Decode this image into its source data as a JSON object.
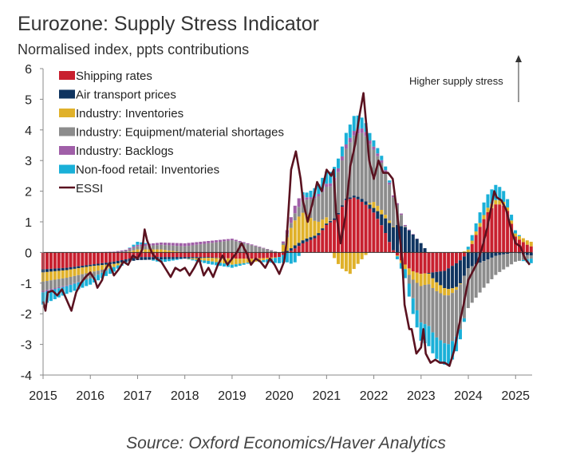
{
  "chart_data": {
    "type": "bar",
    "stacked": true,
    "title": "Eurozone: Supply Stress Indicator",
    "subtitle": "Normalised index, ppts contributions",
    "source": "Source: Oxford Economics/Haver Analytics",
    "annotation": "Higher supply stress",
    "ylim": [
      -4,
      6
    ],
    "yticks": [
      6,
      5,
      4,
      3,
      2,
      1,
      0,
      -1,
      -2,
      -3,
      -4
    ],
    "xticks": [
      "2015",
      "2016",
      "2017",
      "2018",
      "2019",
      "2020",
      "2021",
      "2022",
      "2023",
      "2024",
      "2025"
    ],
    "x_start": 2015.0,
    "x_end": 2025.35,
    "bar_step": 0.0833,
    "legend_position": "top-left",
    "colors": {
      "shipping": "#c8202f",
      "air": "#0f3460",
      "inventories": "#e0b12a",
      "shortages": "#8c8c8c",
      "backlogs": "#a05fa8",
      "retail": "#1ab0d8",
      "essi": "#5a1220"
    },
    "series": [
      {
        "key": "shipping",
        "name": "Shipping rates",
        "anchors": [
          [
            2015.0,
            -0.55
          ],
          [
            2015.5,
            -0.5
          ],
          [
            2016.0,
            -0.4
          ],
          [
            2016.5,
            -0.3
          ],
          [
            2017.0,
            -0.15
          ],
          [
            2017.5,
            -0.15
          ],
          [
            2018.0,
            -0.15
          ],
          [
            2018.5,
            -0.15
          ],
          [
            2019.0,
            -0.2
          ],
          [
            2019.5,
            -0.2
          ],
          [
            2020.0,
            -0.15
          ],
          [
            2020.3,
            0.1
          ],
          [
            2020.5,
            0.3
          ],
          [
            2020.8,
            0.5
          ],
          [
            2021.0,
            0.9
          ],
          [
            2021.2,
            1.1
          ],
          [
            2021.4,
            1.7
          ],
          [
            2021.6,
            1.8
          ],
          [
            2021.8,
            1.6
          ],
          [
            2022.0,
            1.3
          ],
          [
            2022.2,
            0.8
          ],
          [
            2022.4,
            0.1
          ],
          [
            2022.6,
            -0.3
          ],
          [
            2022.8,
            -0.6
          ],
          [
            2023.0,
            -0.7
          ],
          [
            2023.5,
            -0.6
          ],
          [
            2023.8,
            -0.3
          ],
          [
            2024.0,
            0.0
          ],
          [
            2024.2,
            0.7
          ],
          [
            2024.4,
            1.3
          ],
          [
            2024.6,
            1.6
          ],
          [
            2024.8,
            1.5
          ],
          [
            2025.0,
            0.5
          ],
          [
            2025.3,
            0.2
          ]
        ]
      },
      {
        "key": "air",
        "name": "Air transport prices",
        "anchors": [
          [
            2015.0,
            -0.1
          ],
          [
            2016.0,
            -0.05
          ],
          [
            2017.0,
            -0.1
          ],
          [
            2018.0,
            -0.05
          ],
          [
            2019.0,
            0.0
          ],
          [
            2020.0,
            0.0
          ],
          [
            2020.3,
            0.1
          ],
          [
            2020.6,
            0.1
          ],
          [
            2021.0,
            0.05
          ],
          [
            2021.5,
            0.05
          ],
          [
            2022.0,
            0.15
          ],
          [
            2022.2,
            0.4
          ],
          [
            2022.5,
            0.9
          ],
          [
            2022.7,
            0.8
          ],
          [
            2023.0,
            0.3
          ],
          [
            2023.3,
            -0.3
          ],
          [
            2023.6,
            -0.7
          ],
          [
            2023.8,
            -0.8
          ],
          [
            2024.0,
            -0.5
          ],
          [
            2024.3,
            -0.3
          ],
          [
            2024.6,
            -0.1
          ],
          [
            2025.0,
            0.0
          ],
          [
            2025.3,
            -0.1
          ]
        ]
      },
      {
        "key": "inventories",
        "name": "Industry: Inventories",
        "anchors": [
          [
            2015.0,
            -0.3
          ],
          [
            2015.5,
            -0.25
          ],
          [
            2016.0,
            -0.2
          ],
          [
            2016.5,
            -0.1
          ],
          [
            2017.0,
            0.1
          ],
          [
            2017.5,
            0.1
          ],
          [
            2018.0,
            0.0
          ],
          [
            2018.5,
            -0.1
          ],
          [
            2019.0,
            -0.2
          ],
          [
            2019.5,
            -0.1
          ],
          [
            2020.0,
            0.0
          ],
          [
            2020.3,
            0.8
          ],
          [
            2020.5,
            0.9
          ],
          [
            2020.8,
            0.4
          ],
          [
            2021.0,
            0.2
          ],
          [
            2021.3,
            -0.5
          ],
          [
            2021.5,
            -0.7
          ],
          [
            2021.7,
            -0.3
          ],
          [
            2022.0,
            0.2
          ],
          [
            2022.3,
            0.1
          ],
          [
            2022.6,
            -0.1
          ],
          [
            2023.0,
            -0.4
          ],
          [
            2023.3,
            -0.3
          ],
          [
            2023.6,
            -0.2
          ],
          [
            2024.0,
            0.1
          ],
          [
            2024.5,
            0.15
          ],
          [
            2025.0,
            0.1
          ],
          [
            2025.3,
            0.15
          ]
        ]
      },
      {
        "key": "shortages",
        "name": "Industry: Equipment/material shortages",
        "anchors": [
          [
            2015.0,
            -0.3
          ],
          [
            2015.5,
            -0.25
          ],
          [
            2016.0,
            -0.2
          ],
          [
            2016.5,
            0.0
          ],
          [
            2017.0,
            0.1
          ],
          [
            2017.5,
            0.15
          ],
          [
            2018.0,
            0.2
          ],
          [
            2018.5,
            0.3
          ],
          [
            2019.0,
            0.4
          ],
          [
            2019.5,
            0.2
          ],
          [
            2020.0,
            0.0
          ],
          [
            2020.3,
            0.2
          ],
          [
            2020.5,
            0.4
          ],
          [
            2020.8,
            0.8
          ],
          [
            2021.0,
            1.0
          ],
          [
            2021.3,
            1.4
          ],
          [
            2021.6,
            2.0
          ],
          [
            2021.8,
            2.2
          ],
          [
            2022.0,
            1.7
          ],
          [
            2022.2,
            1.5
          ],
          [
            2022.4,
            1.0
          ],
          [
            2022.6,
            0.3
          ],
          [
            2022.8,
            -0.5
          ],
          [
            2023.0,
            -1.2
          ],
          [
            2023.3,
            -1.5
          ],
          [
            2023.6,
            -1.6
          ],
          [
            2023.8,
            -1.5
          ],
          [
            2024.0,
            -1.3
          ],
          [
            2024.3,
            -0.9
          ],
          [
            2024.6,
            -0.6
          ],
          [
            2025.0,
            -0.3
          ],
          [
            2025.3,
            -0.1
          ]
        ]
      },
      {
        "key": "backlogs",
        "name": "Industry: Backlogs",
        "anchors": [
          [
            2015.0,
            -0.05
          ],
          [
            2016.0,
            0.0
          ],
          [
            2017.0,
            0.05
          ],
          [
            2018.0,
            0.1
          ],
          [
            2019.0,
            0.05
          ],
          [
            2020.0,
            0.0
          ],
          [
            2020.4,
            0.3
          ],
          [
            2020.6,
            0.05
          ],
          [
            2021.0,
            0.1
          ],
          [
            2021.5,
            0.15
          ],
          [
            2021.8,
            0.15
          ],
          [
            2022.0,
            0.1
          ],
          [
            2022.5,
            0.05
          ],
          [
            2023.0,
            0.0
          ],
          [
            2024.0,
            0.0
          ],
          [
            2025.0,
            0.0
          ]
        ]
      },
      {
        "key": "retail",
        "name": "Non-food retail: Inventories",
        "anchors": [
          [
            2015.0,
            -0.4
          ],
          [
            2015.5,
            -0.25
          ],
          [
            2016.0,
            -0.2
          ],
          [
            2016.5,
            -0.15
          ],
          [
            2017.0,
            0.1
          ],
          [
            2017.5,
            -0.1
          ],
          [
            2018.0,
            0.0
          ],
          [
            2018.5,
            -0.1
          ],
          [
            2019.0,
            -0.1
          ],
          [
            2019.5,
            0.0
          ],
          [
            2020.0,
            -0.2
          ],
          [
            2020.3,
            -0.4
          ],
          [
            2020.5,
            0.1
          ],
          [
            2020.8,
            0.3
          ],
          [
            2021.0,
            0.4
          ],
          [
            2021.3,
            0.3
          ],
          [
            2021.6,
            0.5
          ],
          [
            2021.8,
            0.3
          ],
          [
            2022.0,
            0.2
          ],
          [
            2022.3,
            0.1
          ],
          [
            2022.6,
            -0.2
          ],
          [
            2022.8,
            -0.5
          ],
          [
            2023.0,
            -0.6
          ],
          [
            2023.3,
            -0.7
          ],
          [
            2023.6,
            -0.7
          ],
          [
            2023.8,
            -0.4
          ],
          [
            2024.0,
            0.1
          ],
          [
            2024.3,
            0.4
          ],
          [
            2024.6,
            0.5
          ],
          [
            2025.0,
            0.1
          ],
          [
            2025.3,
            -0.15
          ]
        ]
      }
    ],
    "essi": {
      "name": "ESSI",
      "points": [
        [
          2015.0,
          -1.6
        ],
        [
          2015.05,
          -1.9
        ],
        [
          2015.1,
          -1.3
        ],
        [
          2015.2,
          -1.25
        ],
        [
          2015.3,
          -1.4
        ],
        [
          2015.4,
          -1.2
        ],
        [
          2015.5,
          -1.55
        ],
        [
          2015.6,
          -1.9
        ],
        [
          2015.7,
          -1.3
        ],
        [
          2015.8,
          -1.0
        ],
        [
          2015.9,
          -0.8
        ],
        [
          2016.0,
          -0.65
        ],
        [
          2016.1,
          -0.9
        ],
        [
          2016.15,
          -1.15
        ],
        [
          2016.25,
          -0.9
        ],
        [
          2016.3,
          -0.6
        ],
        [
          2016.4,
          -0.35
        ],
        [
          2016.5,
          -0.75
        ],
        [
          2016.6,
          -0.55
        ],
        [
          2016.7,
          -0.3
        ],
        [
          2016.8,
          -0.4
        ],
        [
          2016.9,
          -0.1
        ],
        [
          2017.0,
          -0.2
        ],
        [
          2017.1,
          0.1
        ],
        [
          2017.15,
          0.75
        ],
        [
          2017.2,
          0.4
        ],
        [
          2017.3,
          0.0
        ],
        [
          2017.4,
          -0.2
        ],
        [
          2017.5,
          -0.3
        ],
        [
          2017.6,
          -0.55
        ],
        [
          2017.7,
          -0.8
        ],
        [
          2017.8,
          -0.5
        ],
        [
          2017.9,
          -0.6
        ],
        [
          2018.0,
          -0.5
        ],
        [
          2018.1,
          -0.75
        ],
        [
          2018.2,
          -0.5
        ],
        [
          2018.3,
          -0.2
        ],
        [
          2018.4,
          -0.75
        ],
        [
          2018.5,
          -0.5
        ],
        [
          2018.6,
          -0.8
        ],
        [
          2018.7,
          -0.4
        ],
        [
          2018.8,
          -0.1
        ],
        [
          2018.9,
          -0.4
        ],
        [
          2019.0,
          -0.2
        ],
        [
          2019.1,
          0.0
        ],
        [
          2019.2,
          0.3
        ],
        [
          2019.3,
          0.0
        ],
        [
          2019.4,
          -0.4
        ],
        [
          2019.5,
          -0.2
        ],
        [
          2019.6,
          -0.3
        ],
        [
          2019.7,
          -0.5
        ],
        [
          2019.8,
          -0.2
        ],
        [
          2019.9,
          -0.4
        ],
        [
          2020.0,
          -0.7
        ],
        [
          2020.1,
          -0.3
        ],
        [
          2020.15,
          0.3
        ],
        [
          2020.25,
          2.7
        ],
        [
          2020.35,
          3.3
        ],
        [
          2020.45,
          2.4
        ],
        [
          2020.5,
          1.7
        ],
        [
          2020.6,
          1.0
        ],
        [
          2020.7,
          1.6
        ],
        [
          2020.8,
          2.3
        ],
        [
          2020.9,
          2.0
        ],
        [
          2021.0,
          2.7
        ],
        [
          2021.1,
          2.5
        ],
        [
          2021.15,
          2.7
        ],
        [
          2021.2,
          1.3
        ],
        [
          2021.3,
          0.3
        ],
        [
          2021.4,
          1.2
        ],
        [
          2021.5,
          2.8
        ],
        [
          2021.6,
          3.5
        ],
        [
          2021.7,
          4.5
        ],
        [
          2021.78,
          5.2
        ],
        [
          2021.85,
          4.0
        ],
        [
          2021.9,
          3.0
        ],
        [
          2022.0,
          2.4
        ],
        [
          2022.1,
          3.0
        ],
        [
          2022.2,
          2.6
        ],
        [
          2022.3,
          2.6
        ],
        [
          2022.4,
          2.4
        ],
        [
          2022.5,
          1.2
        ],
        [
          2022.6,
          -0.2
        ],
        [
          2022.65,
          -1.7
        ],
        [
          2022.75,
          -2.5
        ],
        [
          2022.8,
          -2.5
        ],
        [
          2022.9,
          -3.3
        ],
        [
          2023.0,
          -3.1
        ],
        [
          2023.05,
          -2.5
        ],
        [
          2023.1,
          -3.3
        ],
        [
          2023.2,
          -3.6
        ],
        [
          2023.3,
          -3.5
        ],
        [
          2023.4,
          -3.6
        ],
        [
          2023.5,
          -3.6
        ],
        [
          2023.6,
          -3.7
        ],
        [
          2023.7,
          -3.2
        ],
        [
          2023.8,
          -2.4
        ],
        [
          2023.9,
          -1.7
        ],
        [
          2024.0,
          -0.9
        ],
        [
          2024.1,
          -0.6
        ],
        [
          2024.2,
          -0.3
        ],
        [
          2024.3,
          0.2
        ],
        [
          2024.4,
          0.8
        ],
        [
          2024.5,
          1.6
        ],
        [
          2024.55,
          2.0
        ],
        [
          2024.6,
          1.8
        ],
        [
          2024.7,
          1.7
        ],
        [
          2024.8,
          1.4
        ],
        [
          2024.9,
          0.8
        ],
        [
          2025.0,
          0.3
        ],
        [
          2025.1,
          0.2
        ],
        [
          2025.2,
          -0.2
        ],
        [
          2025.3,
          -0.4
        ]
      ]
    }
  }
}
